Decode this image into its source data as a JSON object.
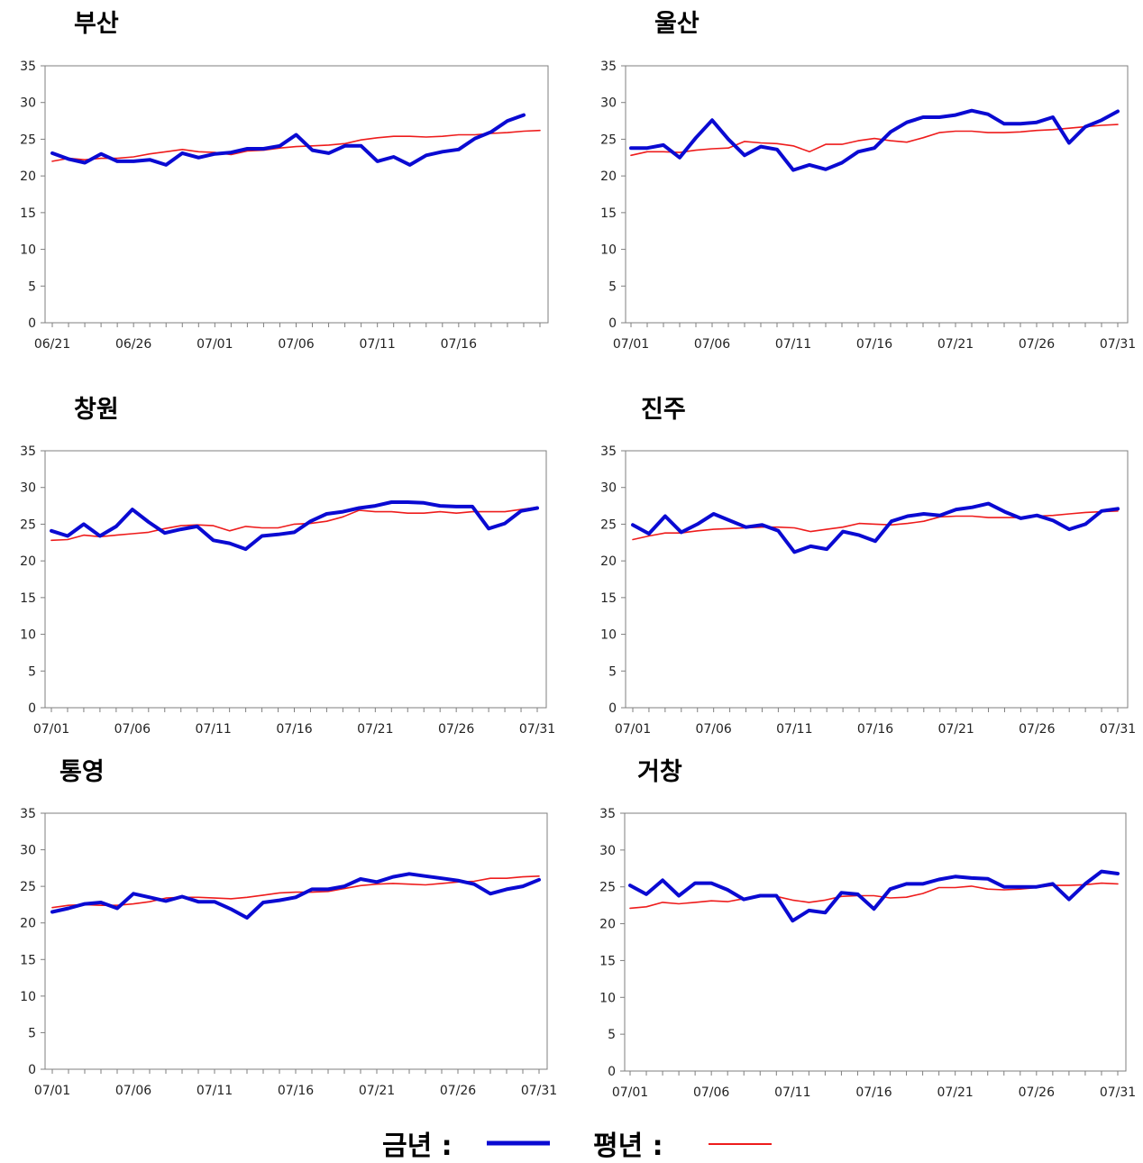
{
  "colors": {
    "this_year": "#0a0ad2",
    "normal_year": "#ee1c1c",
    "axis": "#7f7f7f"
  },
  "legend": {
    "this_year_label": "금년 :",
    "normal_year_label": "평년 :"
  },
  "chart_data": [
    {
      "type": "line",
      "title": "부산",
      "x_ticks": [
        "06/21",
        "06/26",
        "07/01",
        "07/06",
        "07/11",
        "07/16"
      ],
      "ylim": [
        0,
        35
      ],
      "y_ticks": [
        0,
        5,
        10,
        15,
        20,
        25,
        30,
        35
      ],
      "days": 31,
      "series": [
        {
          "name": "금년",
          "values": [
            23.1,
            22.3,
            21.8,
            23.0,
            22.0,
            22.0,
            22.2,
            21.5,
            23.1,
            22.5,
            23.0,
            23.2,
            23.7,
            23.7,
            24.1,
            25.6,
            23.5,
            23.1,
            24.1,
            24.1,
            22.0,
            22.6,
            21.5,
            22.8,
            23.3,
            23.6,
            25.1,
            26.0,
            27.5,
            28.3
          ]
        },
        {
          "name": "평년",
          "values": [
            22.0,
            22.4,
            22.2,
            22.4,
            22.4,
            22.6,
            23.0,
            23.3,
            23.6,
            23.3,
            23.2,
            22.9,
            23.4,
            23.5,
            23.8,
            24.0,
            24.1,
            24.2,
            24.4,
            24.9,
            25.2,
            25.4,
            25.4,
            25.3,
            25.4,
            25.6,
            25.6,
            25.8,
            25.9,
            26.1,
            26.2
          ]
        }
      ]
    },
    {
      "type": "line",
      "title": "울산",
      "x_ticks": [
        "07/01",
        "07/06",
        "07/11",
        "07/16",
        "07/21",
        "07/26",
        "07/31"
      ],
      "ylim": [
        0,
        35
      ],
      "y_ticks": [
        0,
        5,
        10,
        15,
        20,
        25,
        30,
        35
      ],
      "days": 31,
      "series": [
        {
          "name": "금년",
          "values": [
            23.8,
            23.8,
            24.2,
            22.5,
            25.2,
            27.6,
            25.0,
            22.8,
            24.0,
            23.6,
            20.8,
            21.5,
            20.9,
            21.8,
            23.3,
            23.8,
            26.0,
            27.3,
            28.0,
            28.0,
            28.3,
            28.9,
            28.4,
            27.1,
            27.1,
            27.3,
            28.0,
            24.5,
            26.7,
            27.6,
            28.8
          ]
        },
        {
          "name": "평년",
          "values": [
            22.8,
            23.3,
            23.3,
            23.2,
            23.5,
            23.7,
            23.8,
            24.7,
            24.5,
            24.4,
            24.1,
            23.3,
            24.3,
            24.3,
            24.8,
            25.1,
            24.8,
            24.6,
            25.2,
            25.9,
            26.1,
            26.1,
            25.9,
            25.9,
            26.0,
            26.2,
            26.3,
            26.5,
            26.7,
            26.9,
            27.0
          ]
        }
      ]
    },
    {
      "type": "line",
      "title": "창원",
      "x_ticks": [
        "07/01",
        "07/06",
        "07/11",
        "07/16",
        "07/21",
        "07/26",
        "07/31"
      ],
      "ylim": [
        0,
        35
      ],
      "y_ticks": [
        0,
        5,
        10,
        15,
        20,
        25,
        30,
        35
      ],
      "days": 31,
      "series": [
        {
          "name": "금년",
          "values": [
            24.1,
            23.4,
            25.0,
            23.4,
            24.7,
            27.0,
            25.3,
            23.8,
            24.3,
            24.7,
            22.8,
            22.4,
            21.6,
            23.4,
            23.6,
            23.9,
            25.4,
            26.4,
            26.7,
            27.2,
            27.5,
            28.0,
            28.0,
            27.9,
            27.5,
            27.4,
            27.4,
            24.4,
            25.1,
            26.8,
            27.2
          ]
        },
        {
          "name": "평년",
          "values": [
            22.8,
            22.9,
            23.5,
            23.3,
            23.5,
            23.7,
            23.9,
            24.4,
            24.8,
            24.9,
            24.8,
            24.1,
            24.7,
            24.5,
            24.5,
            25.0,
            25.1,
            25.4,
            26.0,
            26.9,
            26.7,
            26.7,
            26.5,
            26.5,
            26.7,
            26.5,
            26.7,
            26.7,
            26.7,
            27.0,
            27.3
          ]
        }
      ]
    },
    {
      "type": "line",
      "title": "진주",
      "x_ticks": [
        "07/01",
        "07/06",
        "07/11",
        "07/16",
        "07/21",
        "07/26",
        "07/31"
      ],
      "ylim": [
        0,
        35
      ],
      "y_ticks": [
        0,
        5,
        10,
        15,
        20,
        25,
        30,
        35
      ],
      "days": 31,
      "series": [
        {
          "name": "금년",
          "values": [
            24.9,
            23.7,
            26.1,
            23.9,
            25.0,
            26.4,
            25.5,
            24.6,
            24.9,
            24.1,
            21.2,
            22.0,
            21.6,
            24.0,
            23.5,
            22.7,
            25.4,
            26.1,
            26.4,
            26.2,
            27.0,
            27.3,
            27.8,
            26.7,
            25.8,
            26.2,
            25.5,
            24.3,
            25.0,
            26.8,
            27.1
          ]
        },
        {
          "name": "평년",
          "values": [
            22.9,
            23.4,
            23.8,
            23.8,
            24.1,
            24.3,
            24.4,
            24.5,
            24.6,
            24.6,
            24.5,
            24.0,
            24.3,
            24.6,
            25.1,
            25.0,
            24.9,
            25.1,
            25.4,
            26.0,
            26.1,
            26.1,
            25.9,
            25.9,
            25.9,
            26.1,
            26.2,
            26.4,
            26.6,
            26.7,
            26.8
          ]
        }
      ]
    },
    {
      "type": "line",
      "title": "통영",
      "x_ticks": [
        "07/01",
        "07/06",
        "07/11",
        "07/16",
        "07/21",
        "07/26",
        "07/31"
      ],
      "ylim": [
        0,
        35
      ],
      "y_ticks": [
        0,
        5,
        10,
        15,
        20,
        25,
        30,
        35
      ],
      "days": 31,
      "series": [
        {
          "name": "금년",
          "values": [
            21.5,
            22.0,
            22.6,
            22.8,
            22.0,
            24.0,
            23.5,
            23.0,
            23.6,
            22.9,
            22.9,
            21.9,
            20.7,
            22.8,
            23.1,
            23.5,
            24.6,
            24.6,
            25.0,
            26.0,
            25.6,
            26.3,
            26.7,
            26.4,
            26.1,
            25.8,
            25.3,
            24.0,
            24.6,
            25.0,
            25.9
          ]
        },
        {
          "name": "평년",
          "values": [
            22.1,
            22.4,
            22.5,
            22.4,
            22.4,
            22.6,
            22.9,
            23.4,
            23.5,
            23.5,
            23.4,
            23.3,
            23.5,
            23.8,
            24.1,
            24.2,
            24.2,
            24.3,
            24.7,
            25.1,
            25.3,
            25.4,
            25.3,
            25.2,
            25.4,
            25.6,
            25.7,
            26.1,
            26.1,
            26.3,
            26.4
          ]
        }
      ]
    },
    {
      "type": "line",
      "title": "거창",
      "x_ticks": [
        "07/01",
        "07/06",
        "07/11",
        "07/16",
        "07/21",
        "07/26",
        "07/31"
      ],
      "ylim": [
        0,
        35
      ],
      "y_ticks": [
        0,
        5,
        10,
        15,
        20,
        25,
        30,
        35
      ],
      "days": 31,
      "series": [
        {
          "name": "금년",
          "values": [
            25.2,
            24.0,
            25.9,
            23.8,
            25.5,
            25.5,
            24.6,
            23.3,
            23.8,
            23.8,
            20.4,
            21.8,
            21.5,
            24.2,
            24.0,
            22.0,
            24.7,
            25.4,
            25.4,
            26.0,
            26.4,
            26.2,
            26.1,
            25.0,
            25.0,
            25.0,
            25.4,
            23.3,
            25.4,
            27.1,
            26.8
          ]
        },
        {
          "name": "평년",
          "values": [
            22.1,
            22.3,
            22.9,
            22.7,
            22.9,
            23.1,
            23.0,
            23.4,
            23.7,
            23.7,
            23.2,
            22.9,
            23.2,
            23.7,
            23.8,
            23.8,
            23.5,
            23.6,
            24.1,
            24.9,
            24.9,
            25.1,
            24.7,
            24.6,
            24.7,
            24.9,
            25.2,
            25.2,
            25.3,
            25.5,
            25.4
          ]
        }
      ]
    }
  ]
}
